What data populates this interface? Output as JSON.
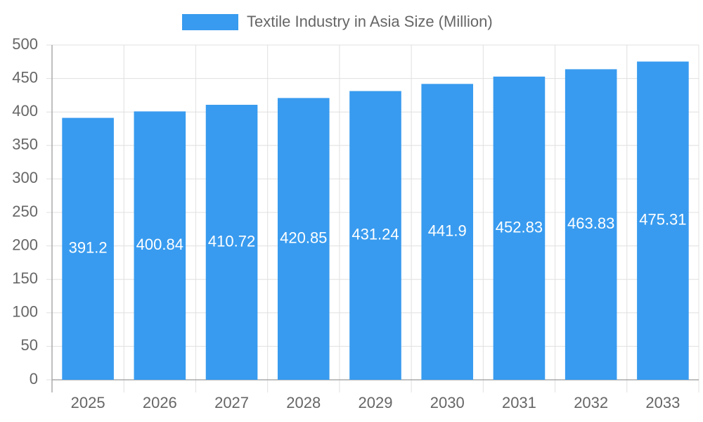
{
  "chart_data": {
    "type": "bar",
    "categories": [
      "2025",
      "2026",
      "2027",
      "2028",
      "2029",
      "2030",
      "2031",
      "2032",
      "2033"
    ],
    "series": [
      {
        "name": "Textile Industry in Asia Size (Million)",
        "color": "#389bef",
        "values": [
          391.2,
          400.84,
          410.72,
          420.85,
          431.24,
          441.9,
          452.83,
          463.83,
          475.31
        ]
      }
    ],
    "ylim": [
      0,
      500
    ],
    "yticks": [
      0,
      50,
      100,
      150,
      200,
      250,
      300,
      350,
      400,
      450,
      500
    ],
    "grid": true,
    "legend": "top"
  }
}
